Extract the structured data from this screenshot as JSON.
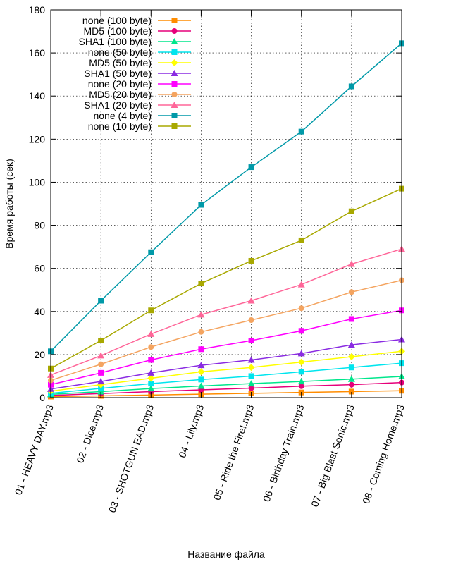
{
  "chart_data": {
    "type": "line",
    "xlabel": "Название файла",
    "ylabel": "Время работы (сек)",
    "ylim": [
      0,
      180
    ],
    "yticks": [
      0,
      20,
      40,
      60,
      80,
      100,
      120,
      140,
      160,
      180
    ],
    "grid": true,
    "legend_position": "top-left",
    "categories": [
      "01 - HEAVY DAY.mp3",
      "02 - Dice.mp3",
      "03 - SHOTGUN  EAD.mp3",
      "04 - Lily.mp3",
      "05 - Ride the Fire!.mp3",
      "06 - Birthday Train.mp3",
      "07 - Big Blast Sonic.mp3",
      "08 - Coming Home.mp3"
    ],
    "series": [
      {
        "name": "none (100 byte)",
        "color": "#ff8c00",
        "marker": "square",
        "values": [
          0.5,
          0.8,
          1.2,
          1.6,
          2.0,
          2.4,
          2.8,
          3.2
        ]
      },
      {
        "name": "MD5 (100 byte)",
        "color": "#e6007a",
        "marker": "circle",
        "values": [
          1.0,
          1.9,
          2.8,
          3.6,
          4.4,
          5.3,
          6.0,
          7.0
        ]
      },
      {
        "name": "SHA1 (100 byte)",
        "color": "#00e68c",
        "marker": "triangle",
        "values": [
          1.5,
          2.8,
          4.2,
          5.4,
          6.5,
          7.5,
          8.6,
          9.8
        ]
      },
      {
        "name": "none (50 byte)",
        "color": "#00e5ee",
        "marker": "square",
        "values": [
          2.0,
          4.3,
          6.5,
          8.4,
          10.0,
          12.0,
          14.0,
          16.0
        ]
      },
      {
        "name": "MD5 (50 byte)",
        "color": "#ffff00",
        "marker": "diamond",
        "values": [
          3.0,
          6.0,
          9.0,
          12.0,
          14.0,
          16.5,
          19.0,
          21.5
        ]
      },
      {
        "name": "SHA1 (50 byte)",
        "color": "#8a2be2",
        "marker": "triangle",
        "values": [
          4.0,
          7.5,
          11.5,
          15.0,
          17.5,
          20.5,
          24.5,
          27.0
        ]
      },
      {
        "name": "none (20 byte)",
        "color": "#ff00ff",
        "marker": "square",
        "values": [
          6.0,
          11.5,
          17.5,
          22.5,
          26.5,
          31.0,
          36.5,
          40.5
        ]
      },
      {
        "name": "MD5 (20 byte)",
        "color": "#f4a460",
        "marker": "circle",
        "values": [
          8.0,
          15.5,
          23.5,
          30.5,
          36.0,
          41.5,
          49.0,
          54.5
        ]
      },
      {
        "name": "SHA1 (20 byte)",
        "color": "#ff6699",
        "marker": "triangle",
        "values": [
          10.5,
          19.5,
          29.5,
          38.5,
          45.0,
          52.5,
          62.0,
          69.0
        ]
      },
      {
        "name": "none (4 byte)",
        "color": "#0099a8",
        "marker": "square",
        "values": [
          21.5,
          45.0,
          67.5,
          89.5,
          107.0,
          123.5,
          144.5,
          164.5
        ]
      },
      {
        "name": "none (10 byte)",
        "color": "#a8a800",
        "marker": "square",
        "values": [
          13.5,
          26.5,
          40.5,
          53.0,
          63.5,
          73.0,
          86.5,
          97.0
        ]
      }
    ]
  }
}
